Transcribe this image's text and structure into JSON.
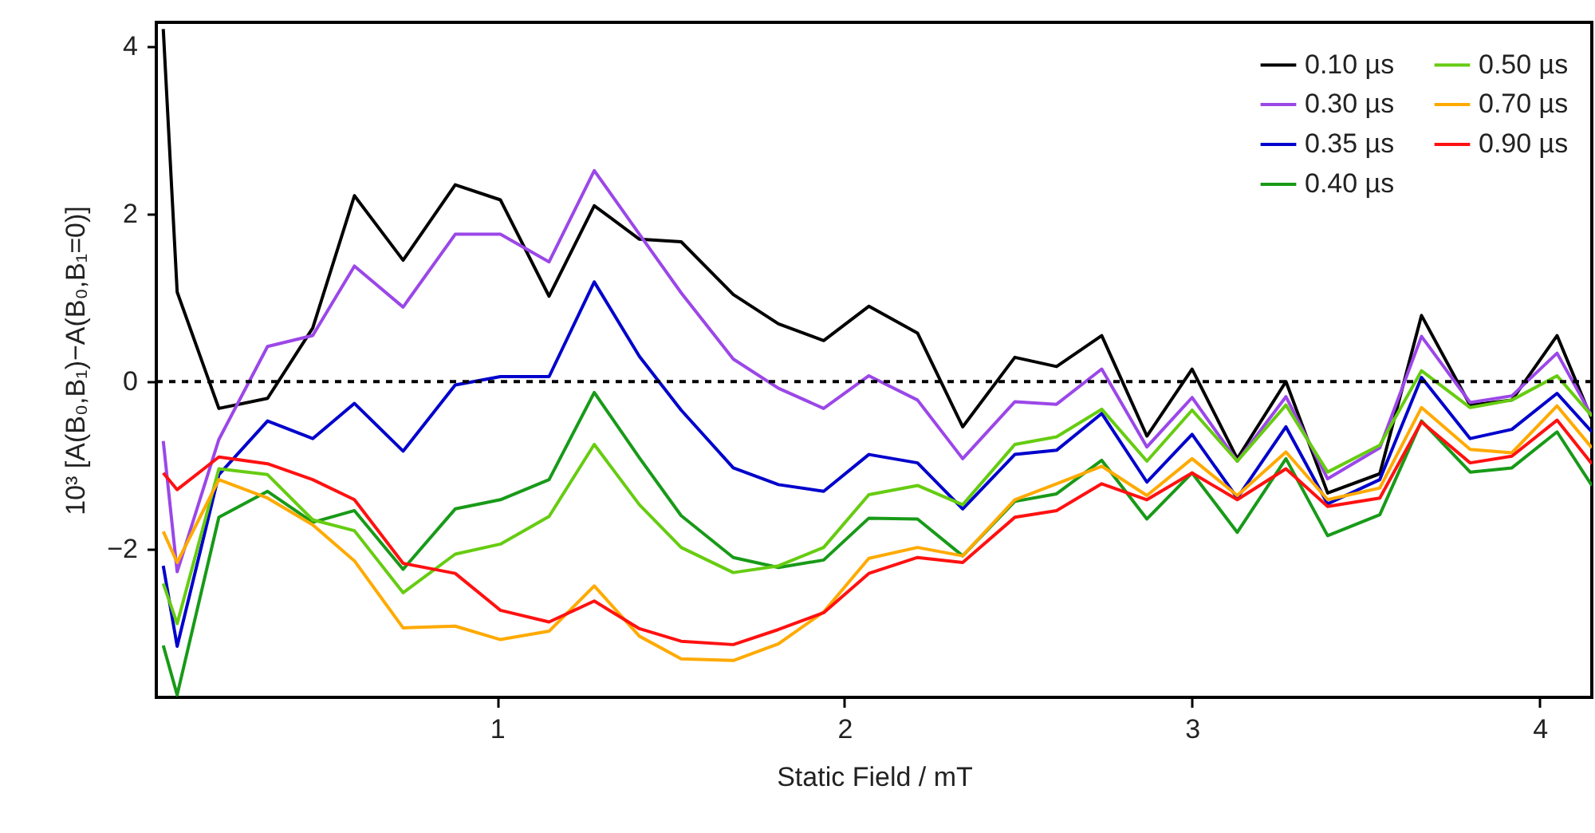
{
  "chart_data": {
    "type": "line",
    "xlabel": "Static Field / mT",
    "ylabel": "10³ [A(B₀,B₁)−A(B₀,B₁=0)]",
    "x": [
      0.04,
      0.08,
      0.2,
      0.34,
      0.47,
      0.59,
      0.73,
      0.88,
      1.01,
      1.15,
      1.28,
      1.41,
      1.53,
      1.68,
      1.81,
      1.94,
      2.07,
      2.21,
      2.34,
      2.49,
      2.61,
      2.74,
      2.87,
      3.0,
      3.13,
      3.27,
      3.39,
      3.54,
      3.66,
      3.8,
      3.92,
      4.05,
      4.15
    ],
    "series": [
      {
        "name": "0.10 µs",
        "color": "#000000",
        "values": [
          4.21,
          1.07,
          -0.32,
          -0.2,
          0.64,
          2.22,
          1.45,
          2.35,
          2.17,
          1.02,
          2.1,
          1.7,
          1.67,
          1.04,
          0.69,
          0.49,
          0.9,
          0.58,
          -0.54,
          0.29,
          0.18,
          0.55,
          -0.65,
          0.15,
          -0.92,
          0.0,
          -1.33,
          -1.1,
          0.79,
          -0.28,
          -0.22,
          0.55,
          -0.45
        ]
      },
      {
        "name": "0.30 µs",
        "color": "#9b47e8",
        "values": [
          -0.71,
          -2.27,
          -0.69,
          0.42,
          0.55,
          1.38,
          0.89,
          1.76,
          1.76,
          1.43,
          2.52,
          1.76,
          1.06,
          0.27,
          -0.08,
          -0.32,
          0.07,
          -0.22,
          -0.92,
          -0.24,
          -0.27,
          0.15,
          -0.78,
          -0.19,
          -0.95,
          -0.18,
          -1.16,
          -0.79,
          0.54,
          -0.25,
          -0.17,
          0.34,
          -0.41
        ]
      },
      {
        "name": "0.35 µs",
        "color": "#0000cc",
        "values": [
          -2.2,
          -3.16,
          -1.11,
          -0.47,
          -0.68,
          -0.26,
          -0.83,
          -0.04,
          0.06,
          0.06,
          1.19,
          0.3,
          -0.34,
          -1.03,
          -1.23,
          -1.31,
          -0.87,
          -0.97,
          -1.52,
          -0.87,
          -0.82,
          -0.38,
          -1.2,
          -0.63,
          -1.39,
          -0.54,
          -1.46,
          -1.17,
          0.05,
          -0.68,
          -0.57,
          -0.14,
          -0.6
        ]
      },
      {
        "name": "0.40 µs",
        "color": "#189a18",
        "values": [
          -3.15,
          -3.74,
          -1.62,
          -1.31,
          -1.68,
          -1.54,
          -2.24,
          -1.52,
          -1.41,
          -1.17,
          -0.13,
          -0.91,
          -1.6,
          -2.1,
          -2.22,
          -2.13,
          -1.63,
          -1.64,
          -2.08,
          -1.43,
          -1.34,
          -0.94,
          -1.64,
          -1.09,
          -1.8,
          -0.92,
          -1.84,
          -1.59,
          -0.47,
          -1.08,
          -1.03,
          -0.6,
          -1.24
        ]
      },
      {
        "name": "0.50 µs",
        "color": "#66cc11",
        "values": [
          -2.41,
          -2.89,
          -1.04,
          -1.11,
          -1.65,
          -1.78,
          -2.52,
          -2.06,
          -1.94,
          -1.61,
          -0.75,
          -1.47,
          -1.98,
          -2.28,
          -2.2,
          -1.98,
          -1.35,
          -1.24,
          -1.47,
          -0.75,
          -0.66,
          -0.33,
          -0.95,
          -0.34,
          -0.95,
          -0.28,
          -1.08,
          -0.76,
          0.13,
          -0.31,
          -0.22,
          0.07,
          -0.41
        ]
      },
      {
        "name": "0.70 µs",
        "color": "#ffaa00",
        "values": [
          -1.79,
          -2.16,
          -1.17,
          -1.39,
          -1.71,
          -2.14,
          -2.94,
          -2.92,
          -3.08,
          -2.98,
          -2.44,
          -3.04,
          -3.31,
          -3.33,
          -3.13,
          -2.75,
          -2.11,
          -1.98,
          -2.08,
          -1.41,
          -1.22,
          -1.01,
          -1.36,
          -0.92,
          -1.36,
          -0.84,
          -1.41,
          -1.27,
          -0.31,
          -0.81,
          -0.85,
          -0.29,
          -0.79
        ]
      },
      {
        "name": "0.90 µs",
        "color": "#ff1111",
        "values": [
          -1.09,
          -1.29,
          -0.9,
          -0.98,
          -1.17,
          -1.41,
          -2.17,
          -2.29,
          -2.73,
          -2.87,
          -2.62,
          -2.95,
          -3.1,
          -3.14,
          -2.96,
          -2.76,
          -2.29,
          -2.1,
          -2.16,
          -1.62,
          -1.54,
          -1.22,
          -1.41,
          -1.09,
          -1.41,
          -1.04,
          -1.49,
          -1.39,
          -0.48,
          -0.97,
          -0.89,
          -0.46,
          -0.98
        ]
      }
    ],
    "xlim": [
      0.02,
      4.15
    ],
    "xticks": [
      1,
      2,
      3,
      4
    ],
    "ylim": [
      -3.77,
      4.29
    ],
    "yticks": [
      -2,
      0,
      2,
      4
    ],
    "ref_lines": [
      {
        "axis": "y",
        "value": 0,
        "color": "#000000",
        "line_style": "dashed"
      }
    ],
    "legend": "top right",
    "grid": false
  }
}
